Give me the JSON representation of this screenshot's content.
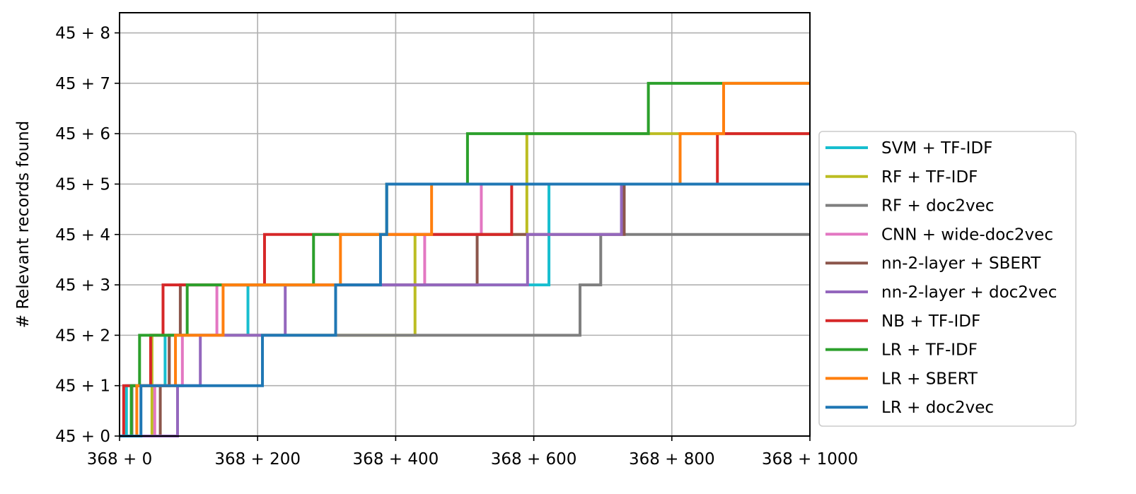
{
  "chart_data": {
    "type": "line",
    "xlabel": "",
    "ylabel": "# Relevant records found",
    "xlim": [
      0,
      1000
    ],
    "ylim": [
      0,
      8.4
    ],
    "x_ticks": [
      0,
      200,
      400,
      600,
      800,
      1000
    ],
    "x_tick_labels": [
      "368 + 0",
      "368 + 200",
      "368 + 400",
      "368 + 600",
      "368 + 800",
      "368 + 1000"
    ],
    "y_ticks": [
      0,
      1,
      2,
      3,
      4,
      5,
      6,
      7,
      8
    ],
    "y_tick_labels": [
      "45 + 0",
      "45 + 1",
      "45 + 2",
      "45 + 3",
      "45 + 4",
      "45 + 5",
      "45 + 6",
      "45 + 7",
      "45 + 8"
    ],
    "grid": true,
    "legend_position": "right",
    "series": [
      {
        "name": "SVM + TF-IDF",
        "color": "#17becf",
        "steps": [
          [
            0,
            0
          ],
          [
            10,
            1
          ],
          [
            66,
            2
          ],
          [
            186,
            3
          ],
          [
            622,
            5
          ],
          [
            1000,
            5
          ]
        ]
      },
      {
        "name": "RF + TF-IDF",
        "color": "#bcbd22",
        "steps": [
          [
            0,
            0
          ],
          [
            47,
            2
          ],
          [
            428,
            4
          ],
          [
            590,
            6
          ],
          [
            1000,
            6
          ]
        ]
      },
      {
        "name": "RF + doc2vec",
        "color": "#7f7f7f",
        "steps": [
          [
            0,
            0
          ],
          [
            18,
            1
          ],
          [
            72,
            2
          ],
          [
            667,
            3
          ],
          [
            697,
            4
          ],
          [
            1000,
            4
          ]
        ]
      },
      {
        "name": "CNN + wide-doc2vec",
        "color": "#e377c2",
        "steps": [
          [
            0,
            0
          ],
          [
            51,
            1
          ],
          [
            91,
            2
          ],
          [
            141,
            3
          ],
          [
            442,
            4
          ],
          [
            524,
            5
          ],
          [
            1000,
            5
          ]
        ]
      },
      {
        "name": "nn-2-layer + SBERT",
        "color": "#8c564b",
        "steps": [
          [
            0,
            0
          ],
          [
            59,
            1
          ],
          [
            72,
            2
          ],
          [
            88,
            3
          ],
          [
            518,
            4
          ],
          [
            731,
            5
          ],
          [
            1000,
            5
          ]
        ]
      },
      {
        "name": "nn-2-layer + doc2vec",
        "color": "#9467bd",
        "steps": [
          [
            0,
            0
          ],
          [
            84,
            1
          ],
          [
            117,
            2
          ],
          [
            240,
            3
          ],
          [
            591,
            4
          ],
          [
            727,
            5
          ],
          [
            1000,
            5
          ]
        ]
      },
      {
        "name": "NB + TF-IDF",
        "color": "#d62728",
        "steps": [
          [
            0,
            0
          ],
          [
            6,
            1
          ],
          [
            45,
            2
          ],
          [
            63,
            3
          ],
          [
            210,
            4
          ],
          [
            568,
            5
          ],
          [
            866,
            6
          ],
          [
            1000,
            6
          ]
        ]
      },
      {
        "name": "LR + TF-IDF",
        "color": "#2ca02c",
        "steps": [
          [
            0,
            0
          ],
          [
            17,
            1
          ],
          [
            29,
            2
          ],
          [
            98,
            3
          ],
          [
            281,
            4
          ],
          [
            387,
            5
          ],
          [
            504,
            6
          ],
          [
            766,
            7
          ],
          [
            1000,
            7
          ]
        ]
      },
      {
        "name": "LR + SBERT",
        "color": "#ff7f0e",
        "steps": [
          [
            0,
            0
          ],
          [
            25,
            1
          ],
          [
            81,
            2
          ],
          [
            150,
            3
          ],
          [
            320,
            4
          ],
          [
            452,
            5
          ],
          [
            812,
            6
          ],
          [
            875,
            7
          ],
          [
            1000,
            7
          ]
        ]
      },
      {
        "name": "LR + doc2vec",
        "color": "#1f77b4",
        "steps": [
          [
            0,
            0
          ],
          [
            31,
            1
          ],
          [
            207,
            2
          ],
          [
            313,
            3
          ],
          [
            378,
            4
          ],
          [
            387,
            5
          ],
          [
            1000,
            5
          ]
        ]
      }
    ]
  }
}
